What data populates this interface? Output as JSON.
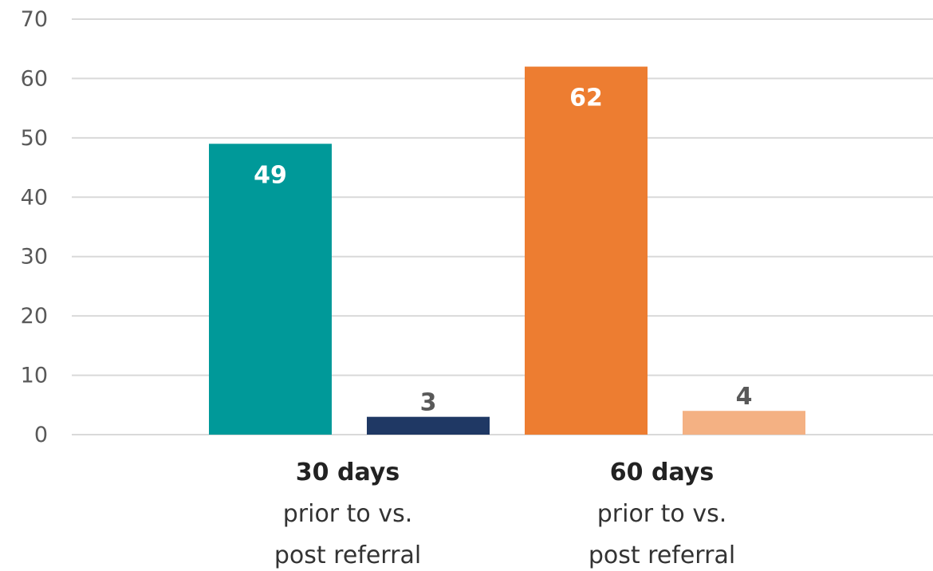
{
  "chart_data": {
    "type": "bar",
    "title": "",
    "xlabel": "",
    "ylabel": "",
    "ylim": [
      0,
      70
    ],
    "yticks": [
      0,
      10,
      20,
      30,
      40,
      50,
      60,
      70
    ],
    "grid": true,
    "legend": "none",
    "categories": [
      {
        "bold": "30 days",
        "lines": [
          "prior to vs.",
          "post referral"
        ]
      },
      {
        "bold": "60 days",
        "lines": [
          "prior to vs.",
          "post referral"
        ]
      }
    ],
    "bars": [
      {
        "category": 0,
        "value": 49,
        "color": "#009999",
        "label_color": "#ffffff",
        "label_inside": true
      },
      {
        "category": 0,
        "value": 3,
        "color": "#1f3864",
        "label_color": "#595959",
        "label_inside": false
      },
      {
        "category": 1,
        "value": 62,
        "color": "#ed7d31",
        "label_color": "#ffffff",
        "label_inside": true
      },
      {
        "category": 1,
        "value": 4,
        "color": "#f4b183",
        "label_color": "#595959",
        "label_inside": false
      }
    ]
  }
}
